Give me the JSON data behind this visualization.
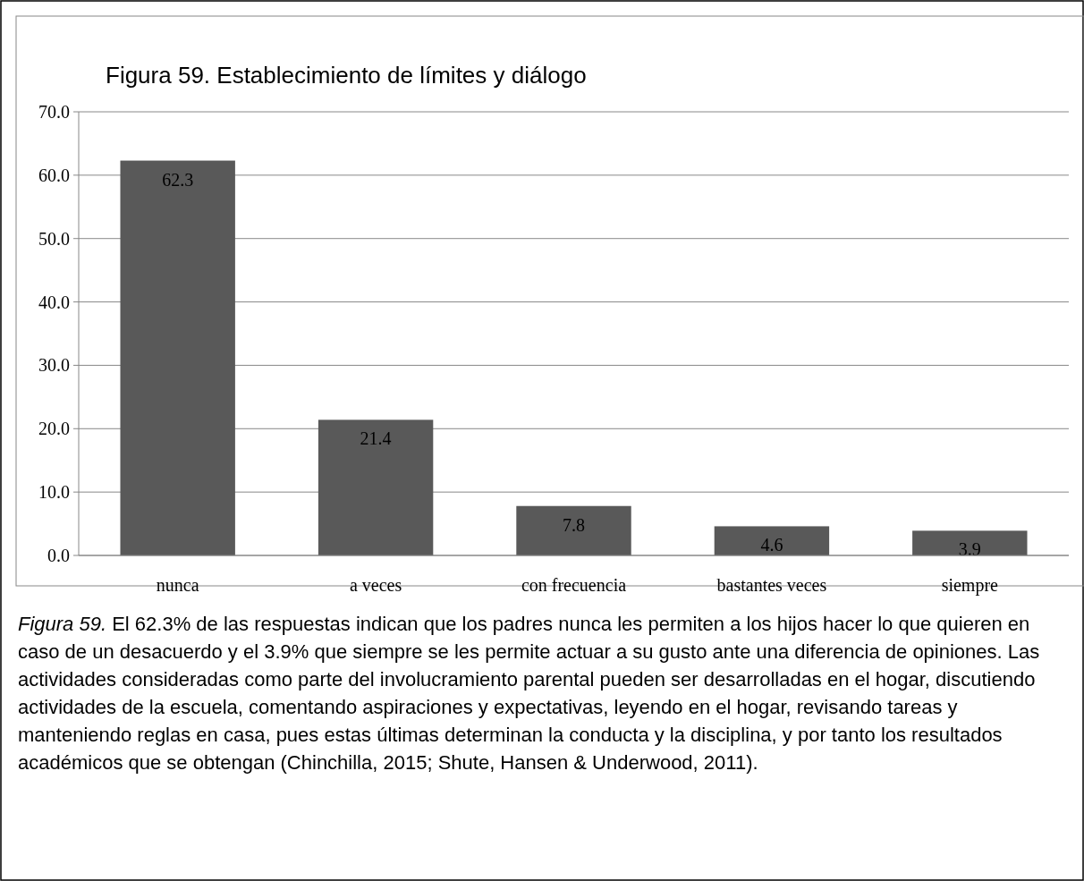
{
  "chart_data": {
    "type": "bar",
    "title": "Figura 59. Establecimiento de límites y diálogo",
    "categories": [
      "nunca",
      "a veces",
      "con frecuencia",
      "bastantes veces",
      "siempre"
    ],
    "values": [
      62.3,
      21.4,
      7.8,
      4.6,
      3.9
    ],
    "color": "#595959",
    "ylim": [
      0,
      70
    ],
    "yticks": [
      {
        "value": 0,
        "label": "0.0"
      },
      {
        "value": 10,
        "label": "10.0"
      },
      {
        "value": 20,
        "label": "20.0"
      },
      {
        "value": 30,
        "label": "30.0"
      },
      {
        "value": 40,
        "label": "40.0"
      },
      {
        "value": 50,
        "label": "50.0"
      },
      {
        "value": 60,
        "label": "60.0"
      },
      {
        "value": 70,
        "label": "70.0"
      }
    ],
    "grid": "y",
    "data_labels": true,
    "annotations": [
      "Figura 59. El 62.3% de las respuestas indican que los padres nunca les permiten a los hijos hacer lo que quieren en caso de un desacuerdo y el 3.9% que siempre se les permite actuar a su gusto ante una diferencia de opiniones. Las actividades consideradas como parte del involucramiento parental pueden ser desarrolladas en el hogar, discutiendo actividades de la escuela, comentando aspiraciones y expectativas, leyendo en el hogar, revisando tareas y manteniendo reglas en casa, pues estas últimas determinan la conducta y la disciplina, y por tanto los resultados académicos que se obtengan (Chinchilla, 2015; Shute, Hansen & Underwood, 2011)."
    ]
  }
}
